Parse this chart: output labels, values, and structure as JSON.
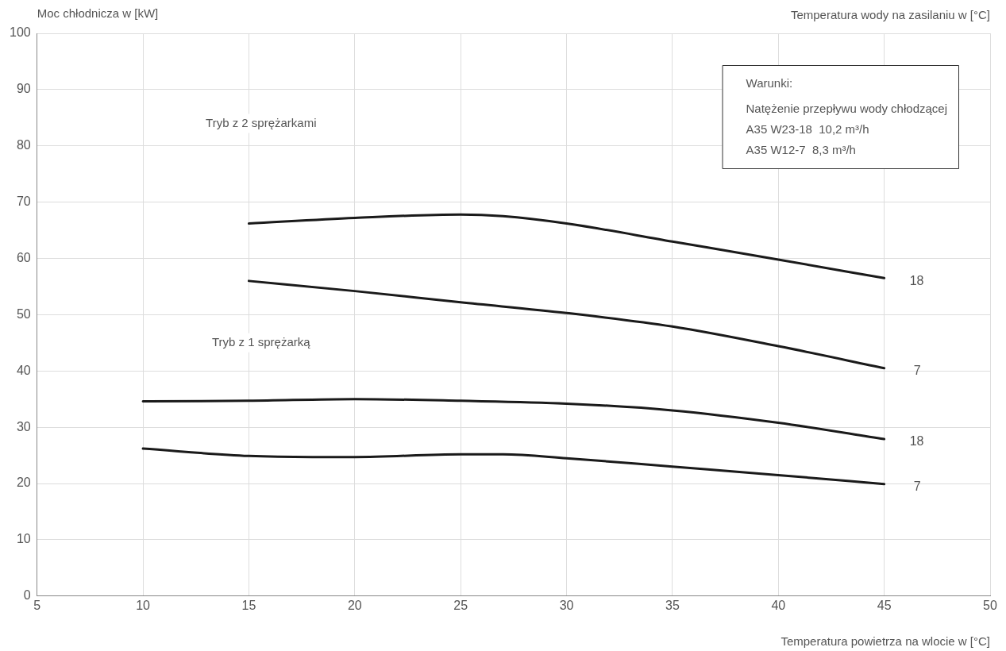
{
  "chart_data": {
    "type": "line",
    "ylabel": "Moc chłodnicza w [kW]",
    "xlabel": "Temperatura powietrza na wlocie w [°C]",
    "legend_title": "Temperatura wody na zasilaniu w [°C]",
    "xlim": [
      5,
      50
    ],
    "xticks": [
      5,
      10,
      15,
      20,
      25,
      30,
      35,
      40,
      45,
      50
    ],
    "ylim": [
      0,
      100
    ],
    "yticks": [
      0,
      10,
      20,
      30,
      40,
      50,
      60,
      70,
      80,
      90,
      100
    ],
    "grid": true,
    "legend": false,
    "marker": "none",
    "line_style": "solid",
    "series": [
      {
        "name": "18",
        "color": "#1a1a1a",
        "x": [
          15,
          20,
          25,
          27,
          30,
          35,
          40,
          45
        ],
        "values": [
          66.2,
          67.2,
          67.8,
          67.5,
          66.2,
          63.0,
          59.8,
          56.5
        ]
      },
      {
        "name": "7",
        "color": "#1a1a1a",
        "x": [
          15,
          20,
          25,
          30,
          35,
          40,
          45
        ],
        "values": [
          56.0,
          54.2,
          52.2,
          50.3,
          47.9,
          44.4,
          40.5
        ]
      },
      {
        "name": "18",
        "color": "#1a1a1a",
        "x": [
          10,
          15,
          20,
          25,
          30,
          35,
          40,
          45
        ],
        "values": [
          34.6,
          34.7,
          35.0,
          34.7,
          34.2,
          33.0,
          30.8,
          27.9
        ]
      },
      {
        "name": "7",
        "color": "#1a1a1a",
        "x": [
          10,
          15,
          18,
          20,
          25,
          27,
          30,
          35,
          40,
          45
        ],
        "values": [
          26.2,
          24.9,
          24.7,
          24.7,
          25.2,
          25.2,
          24.5,
          23.0,
          21.5,
          19.9
        ]
      }
    ],
    "annotations": [
      "Tryb z 2 sprężarkami",
      "Tryb z 1 sprężarką",
      "Warunki:",
      "Natężenie przepływu wody chłodzącej",
      "A35 W23-18  10,2 m³/h",
      "A35 W12-7  8,3 m³/h"
    ]
  }
}
